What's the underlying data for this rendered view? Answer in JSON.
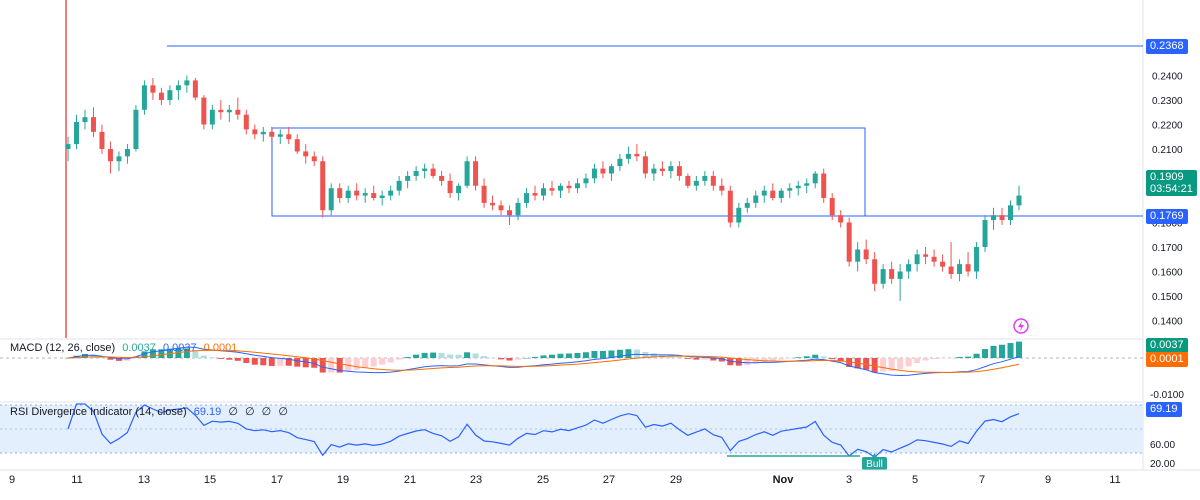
{
  "colors": {
    "up": "#26a69a",
    "down": "#ef5350",
    "macd_line": "#2962ff",
    "signal_line": "#ff6d00",
    "hist_up_strong": "#26a69a",
    "hist_up_weak": "#b2dfdb",
    "hist_down_strong": "#ef5350",
    "hist_down_weak": "#ffcdd2",
    "rsi_line": "#2962ff",
    "rsi_band": "#e3effd",
    "box": "#2962ff",
    "bull_label": "#26a69a",
    "divergence": "#26a69a",
    "axis_text": "#131722",
    "price_badge": "#089981",
    "level_badge": "#2962ff",
    "signal_badge": "#ff6d00"
  },
  "price_pane": {
    "y_ticks": [
      "0.2400",
      "0.2300",
      "0.2200",
      "0.2100",
      "0.2000",
      "0.1800",
      "0.1700",
      "0.1600",
      "0.1500",
      "0.1400"
    ],
    "current_price": "0.1909",
    "countdown": "03:54:21",
    "resistance_level": "0.2368",
    "box_bottom_level": "0.1769",
    "lightning_icon": "lightning-icon"
  },
  "macd_pane": {
    "title": "MACD (12, 26, close)",
    "value_hist": "0.0037",
    "value_macd": "0.0037",
    "value_signal": "0.0001",
    "y_ticks": [
      "-0.0100"
    ],
    "badge_macd": "0.0037",
    "badge_signal": "0.0001"
  },
  "rsi_pane": {
    "title": "RSI Divergence Indicator (14, close)",
    "value": "69.19",
    "empty_values": [
      "∅",
      "∅",
      "∅",
      "∅"
    ],
    "y_ticks": [
      "60.00",
      "20.00"
    ],
    "badge": "69.19",
    "bull_label": "Bull"
  },
  "x_axis": {
    "labels": [
      "9",
      "11",
      "13",
      "15",
      "17",
      "19",
      "21",
      "23",
      "25",
      "27",
      "29",
      "Nov",
      "3",
      "5",
      "7",
      "9",
      "11"
    ]
  },
  "chart_data": {
    "type": "candlestick",
    "timeframe": "4h",
    "ylim": [
      0.135,
      0.245
    ],
    "candles": [
      [
        0.21,
        0.215,
        0.205,
        0.212
      ],
      [
        0.212,
        0.224,
        0.21,
        0.221
      ],
      [
        0.221,
        0.226,
        0.218,
        0.223
      ],
      [
        0.223,
        0.227,
        0.215,
        0.217
      ],
      [
        0.217,
        0.22,
        0.208,
        0.21
      ],
      [
        0.21,
        0.213,
        0.2,
        0.205
      ],
      [
        0.205,
        0.209,
        0.201,
        0.207
      ],
      [
        0.207,
        0.212,
        0.204,
        0.21
      ],
      [
        0.21,
        0.228,
        0.209,
        0.226
      ],
      [
        0.226,
        0.238,
        0.224,
        0.236
      ],
      [
        0.236,
        0.239,
        0.23,
        0.233
      ],
      [
        0.233,
        0.235,
        0.228,
        0.23
      ],
      [
        0.23,
        0.236,
        0.228,
        0.234
      ],
      [
        0.234,
        0.238,
        0.23,
        0.236
      ],
      [
        0.236,
        0.24,
        0.233,
        0.238
      ],
      [
        0.238,
        0.239,
        0.23,
        0.231
      ],
      [
        0.231,
        0.232,
        0.218,
        0.22
      ],
      [
        0.22,
        0.228,
        0.218,
        0.226
      ],
      [
        0.226,
        0.23,
        0.222,
        0.225
      ],
      [
        0.225,
        0.228,
        0.221,
        0.226
      ],
      [
        0.226,
        0.231,
        0.222,
        0.224
      ],
      [
        0.224,
        0.226,
        0.216,
        0.218
      ],
      [
        0.218,
        0.22,
        0.214,
        0.216
      ],
      [
        0.216,
        0.219,
        0.213,
        0.217
      ],
      [
        0.217,
        0.219,
        0.213,
        0.215
      ],
      [
        0.215,
        0.218,
        0.212,
        0.216
      ],
      [
        0.216,
        0.219,
        0.212,
        0.214
      ],
      [
        0.214,
        0.216,
        0.208,
        0.209
      ],
      [
        0.209,
        0.212,
        0.204,
        0.207
      ],
      [
        0.207,
        0.209,
        0.203,
        0.205
      ],
      [
        0.205,
        0.207,
        0.182,
        0.185
      ],
      [
        0.185,
        0.196,
        0.183,
        0.194
      ],
      [
        0.194,
        0.196,
        0.188,
        0.19
      ],
      [
        0.19,
        0.195,
        0.188,
        0.193
      ],
      [
        0.193,
        0.196,
        0.189,
        0.191
      ],
      [
        0.191,
        0.194,
        0.188,
        0.192
      ],
      [
        0.192,
        0.195,
        0.189,
        0.19
      ],
      [
        0.19,
        0.193,
        0.187,
        0.191
      ],
      [
        0.191,
        0.195,
        0.189,
        0.193
      ],
      [
        0.193,
        0.199,
        0.191,
        0.197
      ],
      [
        0.197,
        0.201,
        0.194,
        0.199
      ],
      [
        0.199,
        0.203,
        0.197,
        0.201
      ],
      [
        0.201,
        0.204,
        0.198,
        0.202
      ],
      [
        0.202,
        0.204,
        0.198,
        0.199
      ],
      [
        0.199,
        0.201,
        0.195,
        0.197
      ],
      [
        0.197,
        0.2,
        0.19,
        0.192
      ],
      [
        0.192,
        0.196,
        0.189,
        0.195
      ],
      [
        0.195,
        0.207,
        0.194,
        0.205
      ],
      [
        0.205,
        0.207,
        0.193,
        0.195
      ],
      [
        0.195,
        0.198,
        0.186,
        0.188
      ],
      [
        0.188,
        0.191,
        0.185,
        0.187
      ],
      [
        0.187,
        0.189,
        0.183,
        0.185
      ],
      [
        0.185,
        0.187,
        0.179,
        0.183
      ],
      [
        0.183,
        0.19,
        0.181,
        0.188
      ],
      [
        0.188,
        0.194,
        0.186,
        0.192
      ],
      [
        0.192,
        0.195,
        0.189,
        0.191
      ],
      [
        0.191,
        0.196,
        0.189,
        0.194
      ],
      [
        0.194,
        0.197,
        0.191,
        0.193
      ],
      [
        0.193,
        0.196,
        0.19,
        0.195
      ],
      [
        0.195,
        0.197,
        0.192,
        0.194
      ],
      [
        0.194,
        0.198,
        0.192,
        0.196
      ],
      [
        0.196,
        0.2,
        0.194,
        0.198
      ],
      [
        0.198,
        0.204,
        0.196,
        0.202
      ],
      [
        0.202,
        0.205,
        0.198,
        0.2
      ],
      [
        0.2,
        0.204,
        0.197,
        0.203
      ],
      [
        0.203,
        0.208,
        0.201,
        0.206
      ],
      [
        0.206,
        0.211,
        0.204,
        0.208
      ],
      [
        0.208,
        0.212,
        0.205,
        0.207
      ],
      [
        0.207,
        0.209,
        0.198,
        0.2
      ],
      [
        0.2,
        0.204,
        0.197,
        0.202
      ],
      [
        0.202,
        0.205,
        0.199,
        0.201
      ],
      [
        0.201,
        0.205,
        0.198,
        0.203
      ],
      [
        0.203,
        0.205,
        0.197,
        0.199
      ],
      [
        0.199,
        0.2,
        0.194,
        0.195
      ],
      [
        0.195,
        0.199,
        0.193,
        0.197
      ],
      [
        0.197,
        0.201,
        0.195,
        0.199
      ],
      [
        0.199,
        0.201,
        0.193,
        0.195
      ],
      [
        0.195,
        0.198,
        0.191,
        0.193
      ],
      [
        0.193,
        0.195,
        0.178,
        0.18
      ],
      [
        0.18,
        0.188,
        0.178,
        0.186
      ],
      [
        0.186,
        0.19,
        0.184,
        0.188
      ],
      [
        0.188,
        0.193,
        0.186,
        0.191
      ],
      [
        0.191,
        0.195,
        0.188,
        0.193
      ],
      [
        0.193,
        0.196,
        0.189,
        0.19
      ],
      [
        0.19,
        0.194,
        0.188,
        0.193
      ],
      [
        0.193,
        0.196,
        0.19,
        0.194
      ],
      [
        0.194,
        0.197,
        0.191,
        0.195
      ],
      [
        0.195,
        0.198,
        0.192,
        0.196
      ],
      [
        0.196,
        0.201,
        0.194,
        0.2
      ],
      [
        0.2,
        0.202,
        0.188,
        0.19
      ],
      [
        0.19,
        0.192,
        0.181,
        0.183
      ],
      [
        0.183,
        0.185,
        0.178,
        0.18
      ],
      [
        0.18,
        0.182,
        0.162,
        0.164
      ],
      [
        0.164,
        0.172,
        0.16,
        0.169
      ],
      [
        0.169,
        0.173,
        0.163,
        0.165
      ],
      [
        0.165,
        0.168,
        0.152,
        0.155
      ],
      [
        0.155,
        0.163,
        0.153,
        0.161
      ],
      [
        0.161,
        0.164,
        0.155,
        0.157
      ],
      [
        0.157,
        0.163,
        0.148,
        0.16
      ],
      [
        0.16,
        0.165,
        0.157,
        0.163
      ],
      [
        0.163,
        0.169,
        0.16,
        0.167
      ],
      [
        0.167,
        0.17,
        0.163,
        0.166
      ],
      [
        0.166,
        0.169,
        0.162,
        0.164
      ],
      [
        0.164,
        0.167,
        0.16,
        0.162
      ],
      [
        0.162,
        0.172,
        0.157,
        0.159
      ],
      [
        0.159,
        0.165,
        0.156,
        0.163
      ],
      [
        0.163,
        0.168,
        0.158,
        0.16
      ],
      [
        0.16,
        0.172,
        0.157,
        0.17
      ],
      [
        0.17,
        0.183,
        0.168,
        0.181
      ],
      [
        0.181,
        0.186,
        0.177,
        0.183
      ],
      [
        0.183,
        0.186,
        0.179,
        0.181
      ],
      [
        0.181,
        0.189,
        0.179,
        0.187
      ],
      [
        0.187,
        0.195,
        0.185,
        0.191
      ]
    ]
  }
}
